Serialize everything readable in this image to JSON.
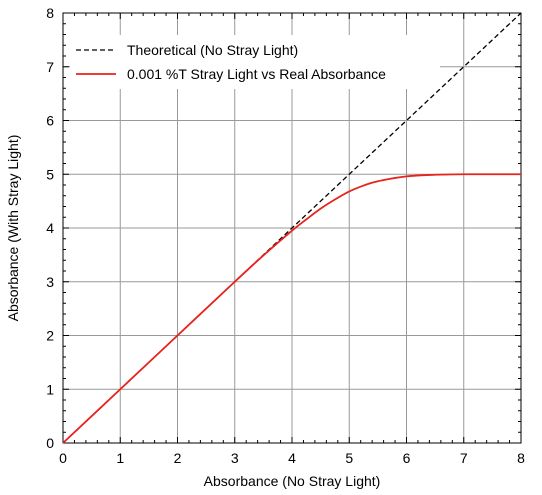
{
  "chart_data": {
    "type": "line",
    "title": "",
    "xlabel": "Absorbance (No Stray Light)",
    "ylabel": "Absorbance (With Stray Light)",
    "xlim": [
      0,
      8
    ],
    "ylim": [
      0,
      8
    ],
    "xticks": [
      0,
      1,
      2,
      3,
      4,
      5,
      6,
      7,
      8
    ],
    "yticks": [
      0,
      1,
      2,
      3,
      4,
      5,
      6,
      7,
      8
    ],
    "grid": true,
    "minor_ticks_per_unit": 5,
    "legend_position": "top-left",
    "series": [
      {
        "name": "Theoretical (No Stray Light)",
        "style": "dashed",
        "color": "#000000",
        "x": [
          0,
          8
        ],
        "y": [
          0,
          8
        ]
      },
      {
        "name": "0.001 %T Stray Light vs Real Absorbance",
        "style": "solid",
        "color": "#e8231c",
        "x": [
          0,
          1,
          2,
          3,
          3.5,
          4,
          4.25,
          4.5,
          4.75,
          5,
          5.25,
          5.5,
          6,
          6.5,
          7,
          8
        ],
        "y": [
          0,
          1,
          2,
          3,
          3.49,
          3.95,
          4.16,
          4.36,
          4.53,
          4.68,
          4.79,
          4.87,
          4.96,
          4.99,
          5.0,
          5.0
        ]
      }
    ]
  }
}
